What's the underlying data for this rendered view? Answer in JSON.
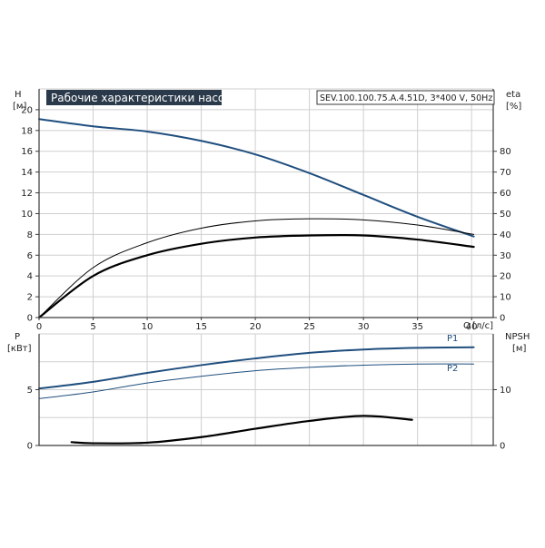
{
  "title": "Рабочие характеристики насоса",
  "model": "SEV.100.100.75.A.4.51D, 3*400 V, 50Hz",
  "colors": {
    "frame": "#3a3a3a",
    "grid": "#cfcfcf",
    "title_bg": "#2b3a4a",
    "blue": "#1f4e7e",
    "black": "#000000"
  },
  "chart_data": [
    {
      "type": "line",
      "panel": "head-efficiency",
      "xlabel": "Q",
      "xunit": "[л/с]",
      "xlim": [
        0,
        42
      ],
      "xticks": [
        0,
        5,
        10,
        15,
        20,
        25,
        30,
        35,
        40
      ],
      "y_left": {
        "label": "H",
        "unit": "[м]",
        "lim": [
          0,
          22
        ],
        "ticks": [
          0,
          2,
          4,
          6,
          8,
          10,
          12,
          14,
          16,
          18,
          20
        ]
      },
      "y_right": {
        "label": "eta",
        "unit": "[%]",
        "lim": [
          0,
          110
        ],
        "ticks": [
          0,
          10,
          20,
          30,
          40,
          50,
          60,
          70,
          80
        ]
      },
      "grid": true,
      "series": [
        {
          "id": "H",
          "axis": "left",
          "color": "#1f4e7e",
          "width": 2,
          "x": [
            0,
            5,
            10,
            15,
            20,
            25,
            30,
            35,
            40.2
          ],
          "y": [
            19.1,
            18.4,
            17.9,
            17.0,
            15.7,
            13.9,
            11.8,
            9.7,
            7.8
          ]
        },
        {
          "id": "eta-thin",
          "axis": "right",
          "color": "#000000",
          "width": 1,
          "x": [
            0,
            5,
            10,
            15,
            20,
            25,
            30,
            35,
            40.2
          ],
          "y": [
            0,
            24,
            36,
            43,
            46.5,
            47.5,
            47,
            44.5,
            40
          ]
        },
        {
          "id": "eta-thick",
          "axis": "right",
          "color": "#000000",
          "width": 2.2,
          "x": [
            0,
            5,
            10,
            15,
            20,
            25,
            30,
            35,
            40.2
          ],
          "y": [
            0,
            20,
            30,
            35.5,
            38.5,
            39.5,
            39.5,
            37.5,
            34
          ]
        }
      ]
    },
    {
      "type": "line",
      "panel": "power-npsh",
      "xlim": [
        0,
        42
      ],
      "y_left": {
        "label": "P",
        "unit": "[кВт]",
        "lim": [
          0,
          10
        ],
        "ticks": [
          0,
          5
        ]
      },
      "y_right": {
        "label": "NPSH",
        "unit": "[м]",
        "lim": [
          0,
          20
        ],
        "ticks": [
          0,
          10
        ]
      },
      "grid": true,
      "series": [
        {
          "id": "P1",
          "label": "P1",
          "axis": "left",
          "color": "#1f4e7e",
          "width": 2,
          "x": [
            0,
            5,
            10,
            15,
            20,
            25,
            30,
            35,
            40.2
          ],
          "y": [
            5.1,
            5.7,
            6.5,
            7.2,
            7.8,
            8.3,
            8.6,
            8.75,
            8.8
          ]
        },
        {
          "id": "P2",
          "label": "P2",
          "axis": "left",
          "color": "#1f4e7e",
          "width": 1,
          "x": [
            0,
            5,
            10,
            15,
            20,
            25,
            30,
            35,
            40.2
          ],
          "y": [
            4.2,
            4.8,
            5.6,
            6.2,
            6.7,
            7.0,
            7.2,
            7.3,
            7.3
          ]
        },
        {
          "id": "NPSH",
          "axis": "right",
          "color": "#000000",
          "width": 2.2,
          "x": [
            3,
            5,
            10,
            15,
            20,
            25,
            30,
            34.5
          ],
          "y": [
            0.6,
            0.4,
            0.5,
            1.5,
            3.0,
            4.4,
            5.3,
            4.6
          ]
        }
      ]
    }
  ]
}
